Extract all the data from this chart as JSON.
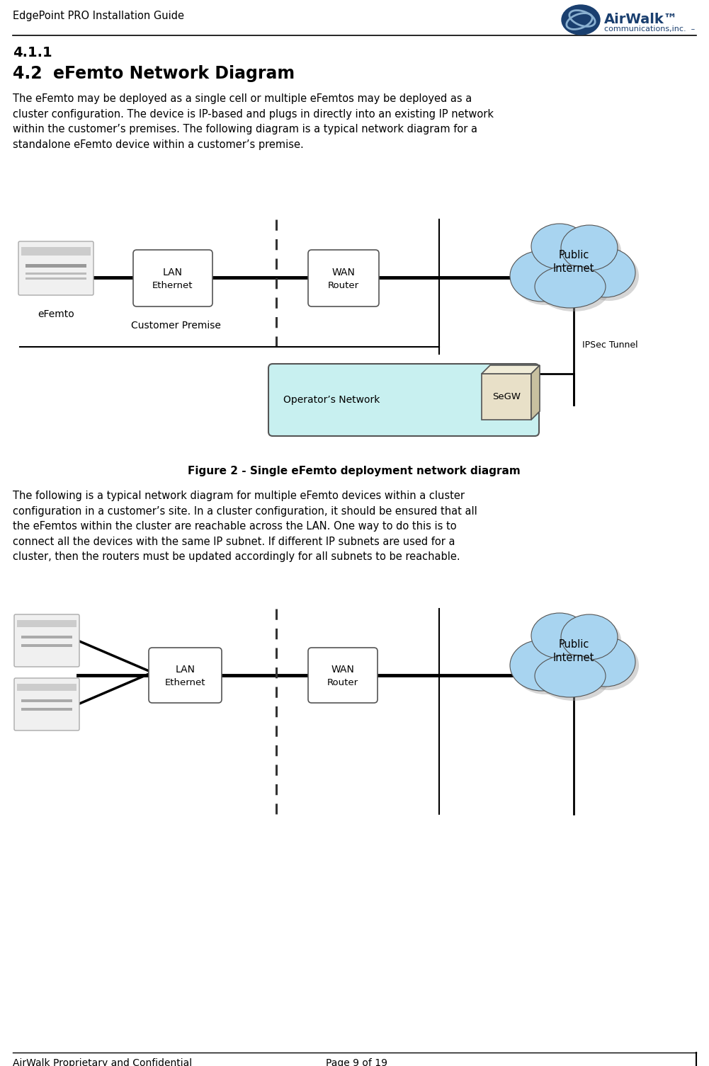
{
  "page_title": "EdgePoint PRO Installation Guide",
  "footer_left": "AirWalk Proprietary and Confidential",
  "footer_right": "Page 9 of 19",
  "section_411": "4.1.1",
  "section_42_num": "4.2",
  "section_42_title": "eFemto Network Diagram",
  "body_text_1": "The eFemto may be deployed as a single cell or multiple eFemtos may be deployed as a\ncluster configuration. The device is IP-based and plugs in directly into an existing IP network\nwithin the customer’s premises. The following diagram is a typical network diagram for a\nstandalone eFemto device within a customer’s premise.",
  "figure_caption": "Figure 2 - Single eFemto deployment network diagram",
  "body_text_2": "The following is a typical network diagram for multiple eFemto devices within a cluster\nconfiguration in a customer’s site. In a cluster configuration, it should be ensured that all\nthe eFemtos within the cluster are reachable across the LAN. One way to do this is to\nconnect all the devices with the same IP subnet. If different IP subnets are used for a\ncluster, then the routers must be updated accordingly for all subnets to be reachable.",
  "bg_color": "#ffffff",
  "text_color": "#000000",
  "cloud_color": "#a8d4f0",
  "cloud_edge": "#666666",
  "box_color": "#ffffff",
  "ops_color": "#c8f0f0",
  "segw_face": "#d8d0a0",
  "segw_top": "#e8e0b8",
  "segw_side": "#b8a878",
  "diagram1": {
    "efemto_label": "eFemto",
    "lan_label_1": "LAN",
    "lan_label_2": "Ethernet",
    "wan_label_1": "WAN",
    "wan_label_2": "Router",
    "public_internet_label": "Public\nInternet",
    "customer_premise_label": "Customer Premise",
    "ipsec_label": "IPSec Tunnel",
    "operators_network_label": "Operator’s Network",
    "segw_label": "SeGW"
  },
  "diagram2": {
    "lan_label_1": "LAN",
    "lan_label_2": "Ethernet",
    "wan_label_1": "WAN",
    "wan_label_2": "Router",
    "public_internet_label": "Public\nInternet"
  }
}
